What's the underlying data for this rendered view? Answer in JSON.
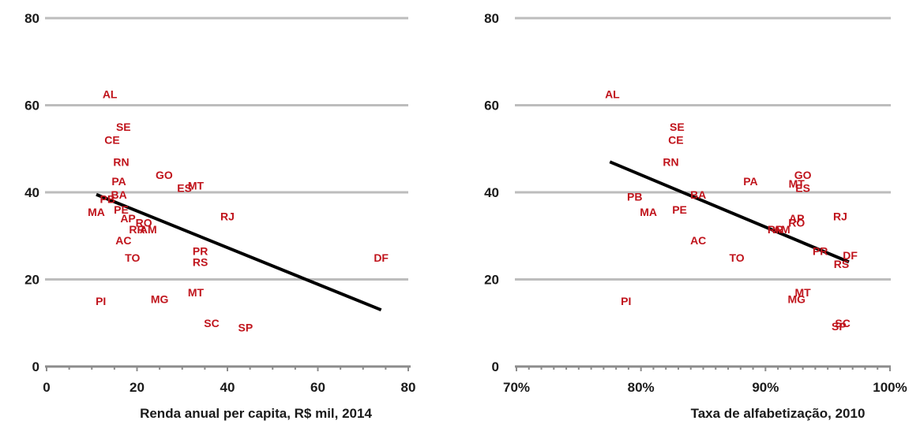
{
  "chart_data": [
    {
      "type": "scatter",
      "xlabel": "Renda anual per capita, R$ mil, 2014",
      "xlim": [
        0,
        80
      ],
      "ylim": [
        0,
        80
      ],
      "xticks": [
        0,
        20,
        40,
        60,
        80
      ],
      "xtick_labels": [
        "0",
        "20",
        "40",
        "60",
        "80"
      ],
      "yticks": [
        0,
        20,
        40,
        60,
        80
      ],
      "ytick_labels": [
        "0",
        "20",
        "40",
        "60",
        "80"
      ],
      "grid": true,
      "trendline": {
        "x": [
          11,
          74
        ],
        "y": [
          39.5,
          13
        ]
      },
      "points": [
        {
          "label": "AL",
          "x": 14,
          "y": 62.5
        },
        {
          "label": "SE",
          "x": 17,
          "y": 55
        },
        {
          "label": "CE",
          "x": 14.5,
          "y": 52
        },
        {
          "label": "RN",
          "x": 16.5,
          "y": 47
        },
        {
          "label": "PA",
          "x": 16,
          "y": 42.5
        },
        {
          "label": "GO",
          "x": 26,
          "y": 44
        },
        {
          "label": "MT",
          "x": 33,
          "y": 41.5
        },
        {
          "label": "ES",
          "x": 30.5,
          "y": 41
        },
        {
          "label": "BA",
          "x": 16,
          "y": 39.5
        },
        {
          "label": "PB",
          "x": 13.5,
          "y": 38.5
        },
        {
          "label": "MA",
          "x": 11,
          "y": 35.5
        },
        {
          "label": "PE",
          "x": 16.5,
          "y": 36
        },
        {
          "label": "AP",
          "x": 18,
          "y": 34
        },
        {
          "label": "RO",
          "x": 21.5,
          "y": 33
        },
        {
          "label": "RR",
          "x": 20,
          "y": 31.5
        },
        {
          "label": "AM",
          "x": 22.5,
          "y": 31.5
        },
        {
          "label": "RJ",
          "x": 40,
          "y": 34.5
        },
        {
          "label": "AC",
          "x": 17,
          "y": 29
        },
        {
          "label": "TO",
          "x": 19,
          "y": 25
        },
        {
          "label": "PR",
          "x": 34,
          "y": 26.5
        },
        {
          "label": "RS",
          "x": 34,
          "y": 24
        },
        {
          "label": "DF",
          "x": 74,
          "y": 25
        },
        {
          "label": "MT",
          "x": 33,
          "y": 17
        },
        {
          "label": "PI",
          "x": 12,
          "y": 15
        },
        {
          "label": "MG",
          "x": 25,
          "y": 15.5
        },
        {
          "label": "SC",
          "x": 36.5,
          "y": 10
        },
        {
          "label": "SP",
          "x": 44,
          "y": 9
        }
      ]
    },
    {
      "type": "scatter",
      "xlabel": "Taxa de alfabetização, 2010",
      "xlim": [
        0.7,
        1.0
      ],
      "ylim": [
        0,
        80
      ],
      "xticks": [
        0.7,
        0.8,
        0.9,
        1.0
      ],
      "xtick_labels": [
        "70%",
        "80%",
        "90%",
        "100%"
      ],
      "yticks": [
        0,
        20,
        40,
        60,
        80
      ],
      "ytick_labels": [
        "0",
        "20",
        "40",
        "60",
        "80"
      ],
      "grid": true,
      "trendline": {
        "x": [
          0.775,
          0.967
        ],
        "y": [
          47,
          24
        ]
      },
      "points": [
        {
          "label": "AL",
          "x": 0.777,
          "y": 62.5
        },
        {
          "label": "SE",
          "x": 0.829,
          "y": 55
        },
        {
          "label": "CE",
          "x": 0.828,
          "y": 52
        },
        {
          "label": "RN",
          "x": 0.824,
          "y": 47
        },
        {
          "label": "PA",
          "x": 0.888,
          "y": 42.5
        },
        {
          "label": "GO",
          "x": 0.93,
          "y": 44
        },
        {
          "label": "MT",
          "x": 0.925,
          "y": 42
        },
        {
          "label": "ES",
          "x": 0.93,
          "y": 41
        },
        {
          "label": "BA",
          "x": 0.846,
          "y": 39.5
        },
        {
          "label": "PB",
          "x": 0.795,
          "y": 39
        },
        {
          "label": "MA",
          "x": 0.806,
          "y": 35.5
        },
        {
          "label": "PE",
          "x": 0.831,
          "y": 36
        },
        {
          "label": "AP",
          "x": 0.925,
          "y": 34
        },
        {
          "label": "RO",
          "x": 0.925,
          "y": 33
        },
        {
          "label": "RJ",
          "x": 0.96,
          "y": 34.5
        },
        {
          "label": "RR",
          "x": 0.908,
          "y": 31.5
        },
        {
          "label": "AM",
          "x": 0.913,
          "y": 31.5
        },
        {
          "label": "AC",
          "x": 0.846,
          "y": 29
        },
        {
          "label": "TO",
          "x": 0.877,
          "y": 25
        },
        {
          "label": "PR",
          "x": 0.944,
          "y": 26.5
        },
        {
          "label": "DF",
          "x": 0.968,
          "y": 25.5
        },
        {
          "label": "RS",
          "x": 0.961,
          "y": 23.5
        },
        {
          "label": "MT",
          "x": 0.93,
          "y": 17
        },
        {
          "label": "MG",
          "x": 0.925,
          "y": 15.5
        },
        {
          "label": "PI",
          "x": 0.788,
          "y": 15
        },
        {
          "label": "SC",
          "x": 0.962,
          "y": 10
        },
        {
          "label": "SP",
          "x": 0.959,
          "y": 9.2
        }
      ]
    }
  ]
}
